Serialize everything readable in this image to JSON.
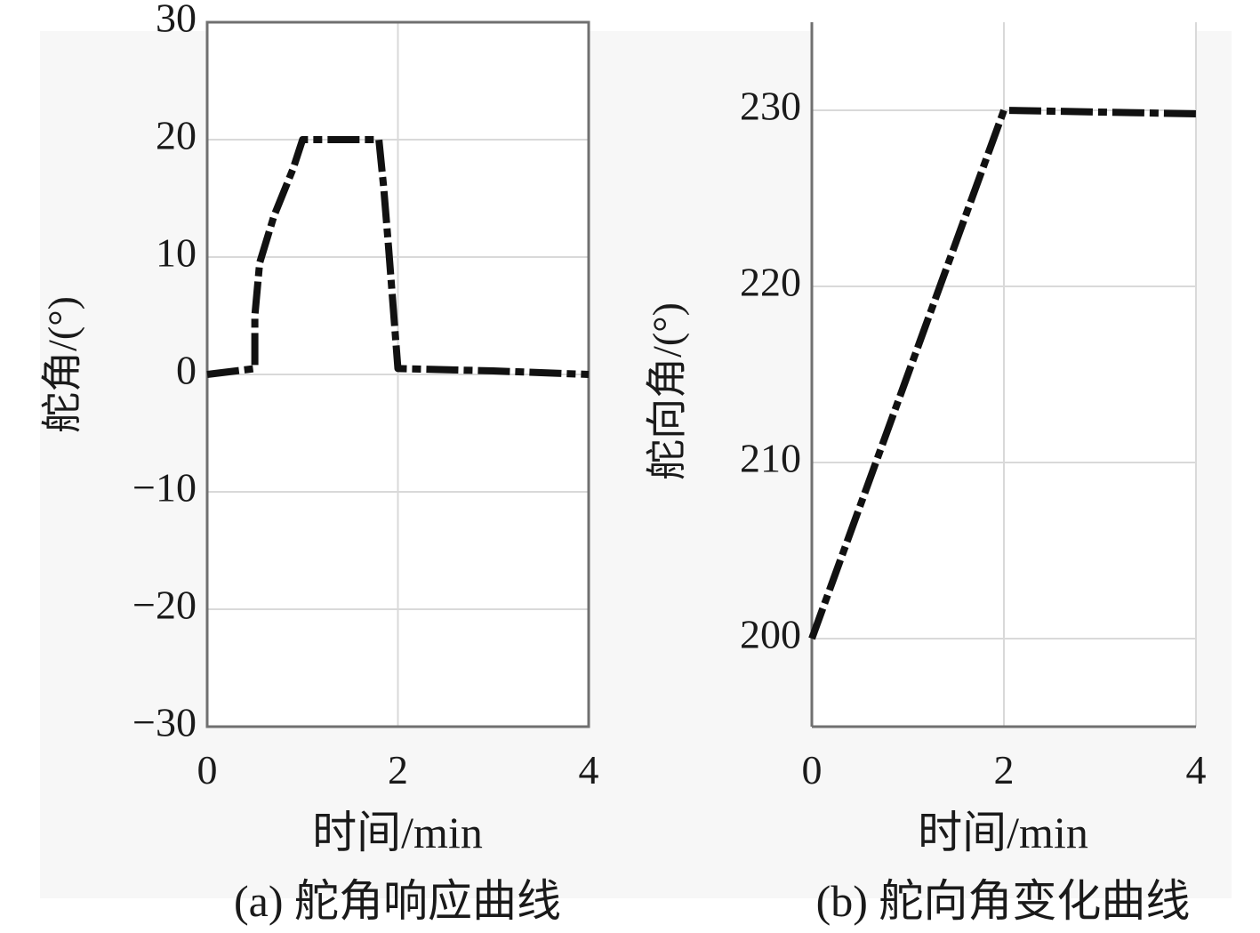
{
  "chart_data": [
    {
      "type": "line",
      "title": "(a) 舵角响应曲线",
      "xlabel": "时间/min",
      "ylabel": "舵角/(°)",
      "xlim": [
        0,
        4
      ],
      "ylim": [
        -30,
        30
      ],
      "xticks": [
        0,
        2,
        4
      ],
      "yticks": [
        -30,
        -20,
        -10,
        0,
        10,
        20,
        30
      ],
      "xtick_labels": [
        "0",
        "2",
        "4"
      ],
      "ytick_labels": [
        "−30",
        "−20",
        "−10",
        "0",
        "10",
        "20",
        "30"
      ],
      "grid": true,
      "series": [
        {
          "name": "舵角",
          "x": [
            0,
            0.5,
            0.5,
            0.55,
            0.7,
            0.9,
            1.0,
            1.8,
            1.85,
            1.9,
            2.0,
            3.0,
            4.0
          ],
          "y": [
            0,
            0.5,
            5,
            9.5,
            13.5,
            17.5,
            20,
            20,
            16,
            11,
            0.5,
            0.3,
            0
          ]
        }
      ]
    },
    {
      "type": "line",
      "title": "(b) 舵向角变化曲线",
      "xlabel": "时间/min",
      "ylabel": "舵向角/(°)",
      "xlim": [
        0,
        4
      ],
      "ylim": [
        195,
        235
      ],
      "xticks": [
        0,
        2,
        4
      ],
      "yticks": [
        200,
        210,
        220,
        230
      ],
      "xtick_labels": [
        "0",
        "2",
        "4"
      ],
      "ytick_labels": [
        "200",
        "210",
        "220",
        "230"
      ],
      "grid": true,
      "series": [
        {
          "name": "舵向角",
          "x": [
            0,
            2.0,
            4.0
          ],
          "y": [
            200,
            230,
            229.8
          ]
        }
      ]
    }
  ]
}
